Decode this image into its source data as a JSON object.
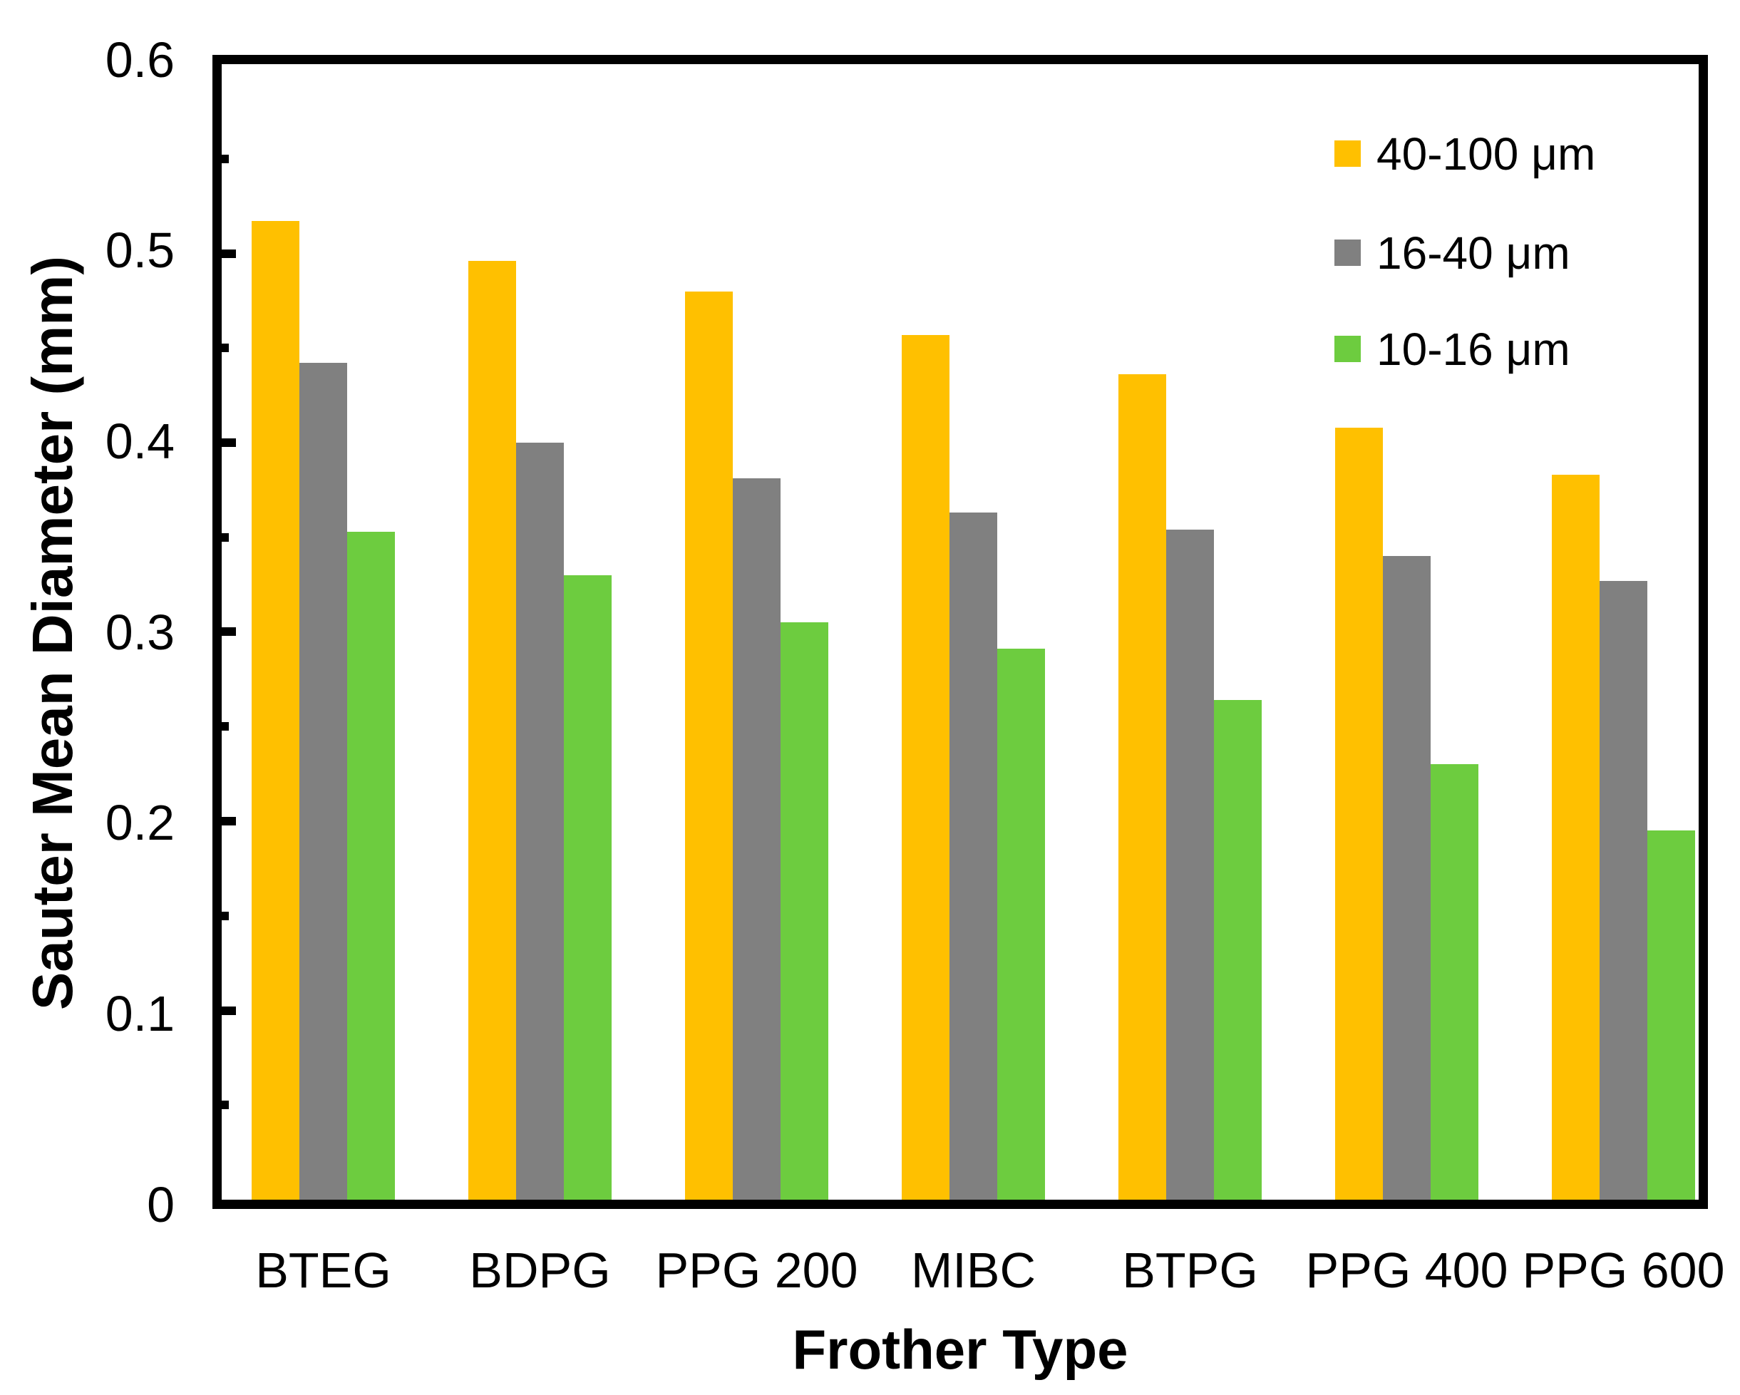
{
  "figure": {
    "background": "#FFFFFF",
    "axis_color": "#000000"
  },
  "chart_data": {
    "type": "bar",
    "title": "",
    "xlabel": "Frother Type",
    "ylabel": "Sauter Mean Diameter (mm)",
    "ylim": [
      0,
      0.6
    ],
    "ytick_labels": [
      "0.6",
      "0.5",
      "0.4",
      "0.3",
      "0.2",
      "0.1",
      "0"
    ],
    "ytick_major_step": 0.1,
    "ytick_minor_step": 0.05,
    "grid": false,
    "legend_position": "top-right-inside",
    "categories": [
      "BTEG",
      "BDPG",
      "PPG 200",
      "MIBC",
      "BTPG",
      "PPG 400",
      "PPG 600"
    ],
    "series": [
      {
        "name": "40-100 μm",
        "color": "#FFC000",
        "values": [
          0.517,
          0.496,
          0.48,
          0.457,
          0.436,
          0.408,
          0.383
        ]
      },
      {
        "name": "16-40 μm",
        "color": "#808080",
        "values": [
          0.442,
          0.4,
          0.381,
          0.363,
          0.354,
          0.34,
          0.327
        ]
      },
      {
        "name": "10-16 μm",
        "color": "#6DCC3F",
        "values": [
          0.353,
          0.33,
          0.305,
          0.291,
          0.264,
          0.23,
          0.195
        ]
      }
    ]
  }
}
